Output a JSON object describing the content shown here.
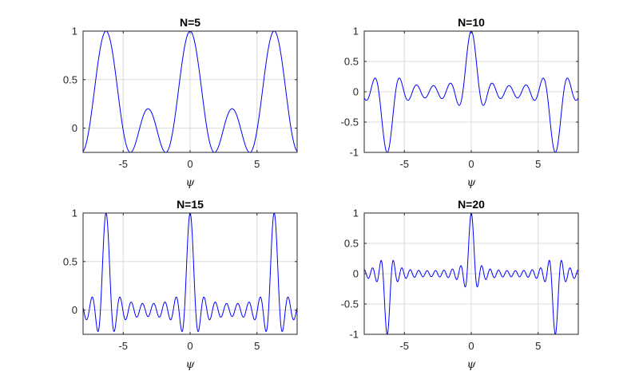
{
  "chart_data": [
    {
      "type": "line",
      "title": "N=5",
      "N": 5,
      "function": "sin(N*psi/2)/(N*sin(psi/2))",
      "xlabel": "ψ",
      "ylabel": "",
      "xlim": [
        -8,
        8
      ],
      "ylim": [
        -0.25,
        1
      ],
      "xticks": [
        -5,
        0,
        5
      ],
      "yticks": [
        0,
        0.5,
        1
      ],
      "xtick_labels": [
        "-5",
        "0",
        "5"
      ],
      "ytick_labels": [
        "0",
        "0.5",
        "1"
      ],
      "grid": true,
      "series": [
        {
          "color": "#0000ff"
        }
      ]
    },
    {
      "type": "line",
      "title": "N=10",
      "N": 10,
      "function": "sin(N*psi/2)/(N*sin(psi/2))",
      "xlabel": "ψ",
      "ylabel": "",
      "xlim": [
        -8,
        8
      ],
      "ylim": [
        -1,
        1
      ],
      "xticks": [
        -5,
        0,
        5
      ],
      "yticks": [
        -1,
        -0.5,
        0,
        0.5,
        1
      ],
      "xtick_labels": [
        "-5",
        "0",
        "5"
      ],
      "ytick_labels": [
        "-1",
        "-0.5",
        "0",
        "0.5",
        "1"
      ],
      "grid": true,
      "series": [
        {
          "color": "#0000ff"
        }
      ]
    },
    {
      "type": "line",
      "title": "N=15",
      "N": 15,
      "function": "sin(N*psi/2)/(N*sin(psi/2))",
      "xlabel": "ψ",
      "ylabel": "",
      "xlim": [
        -8,
        8
      ],
      "ylim": [
        -0.25,
        1
      ],
      "xticks": [
        -5,
        0,
        5
      ],
      "yticks": [
        0,
        0.5,
        1
      ],
      "xtick_labels": [
        "-5",
        "0",
        "5"
      ],
      "ytick_labels": [
        "0",
        "0.5",
        "1"
      ],
      "grid": true,
      "series": [
        {
          "color": "#0000ff"
        }
      ]
    },
    {
      "type": "line",
      "title": "N=20",
      "N": 20,
      "function": "sin(N*psi/2)/(N*sin(psi/2))",
      "xlabel": "ψ",
      "ylabel": "",
      "xlim": [
        -8,
        8
      ],
      "ylim": [
        -1,
        1
      ],
      "xticks": [
        -5,
        0,
        5
      ],
      "yticks": [
        -1,
        -0.5,
        0,
        0.5,
        1
      ],
      "xtick_labels": [
        "-5",
        "0",
        "5"
      ],
      "ytick_labels": [
        "-1",
        "-0.5",
        "0",
        "0.5",
        "1"
      ],
      "grid": true,
      "series": [
        {
          "color": "#0000ff"
        }
      ]
    }
  ]
}
